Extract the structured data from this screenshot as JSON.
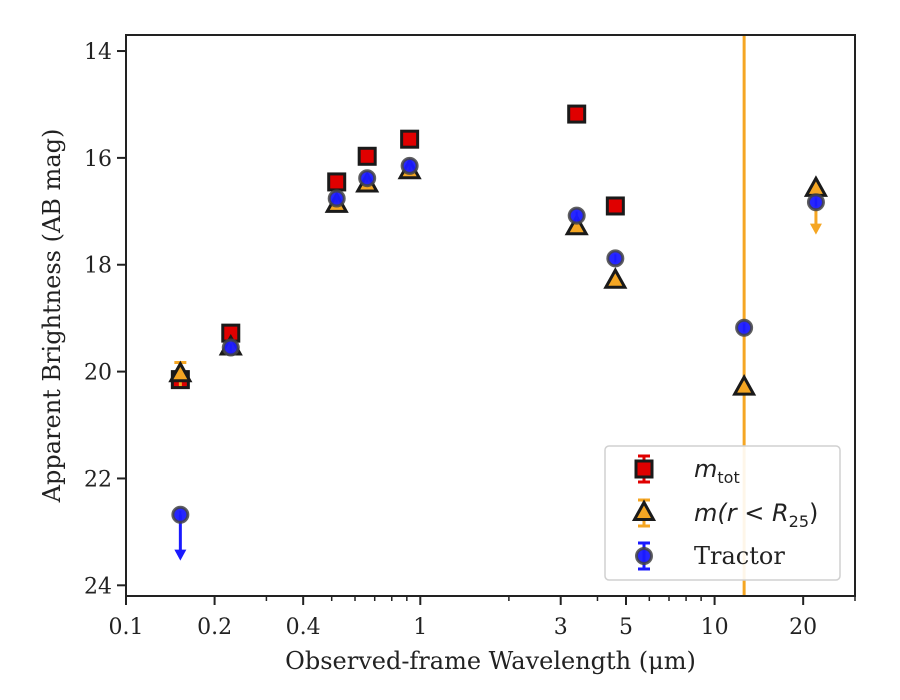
{
  "chart_data": {
    "type": "scatter",
    "xscale": "log",
    "xlim": [
      0.1,
      30
    ],
    "ylim": [
      24.2,
      13.7
    ],
    "y_inverted": true,
    "xlabel": "Observed-frame Wavelength (μm)",
    "ylabel": "Apparent Brightness (AB mag)",
    "xticks": [
      {
        "value": 0.1,
        "label": "0.1"
      },
      {
        "value": 0.2,
        "label": "0.2"
      },
      {
        "value": 0.4,
        "label": "0.4"
      },
      {
        "value": 1,
        "label": "1"
      },
      {
        "value": 3,
        "label": "3"
      },
      {
        "value": 5,
        "label": "5"
      },
      {
        "value": 10,
        "label": "10"
      },
      {
        "value": 20,
        "label": "20"
      }
    ],
    "yticks": [
      {
        "value": 14,
        "label": "14"
      },
      {
        "value": 16,
        "label": "16"
      },
      {
        "value": 18,
        "label": "18"
      },
      {
        "value": 20,
        "label": "20"
      },
      {
        "value": 22,
        "label": "22"
      },
      {
        "value": 24,
        "label": "24"
      }
    ],
    "grid": false,
    "legend_position": "lower-right",
    "vline": {
      "x": 12.6,
      "color": "#f5a623"
    },
    "series": [
      {
        "legend_main": "m",
        "legend_sub": "tot",
        "legend_rest": "",
        "marker": "square",
        "fill": "#e00000",
        "edge": "#1a1a1a",
        "err_color": "#e00000",
        "points": [
          {
            "x": 0.153,
            "y": 20.15
          },
          {
            "x": 0.227,
            "y": 19.28
          },
          {
            "x": 0.52,
            "y": 16.45
          },
          {
            "x": 0.66,
            "y": 15.97
          },
          {
            "x": 0.92,
            "y": 15.65
          },
          {
            "x": 3.4,
            "y": 15.18
          },
          {
            "x": 4.6,
            "y": 16.9
          }
        ]
      },
      {
        "legend_main": "m(r < R",
        "legend_sub": "25",
        "legend_rest": ")",
        "marker": "triangle",
        "fill": "#f5a623",
        "edge": "#1a1a1a",
        "err_color": "#f5a623",
        "points": [
          {
            "x": 0.153,
            "y": 20.05,
            "err": 0.22
          },
          {
            "x": 0.227,
            "y": 19.55
          },
          {
            "x": 0.52,
            "y": 16.88
          },
          {
            "x": 0.66,
            "y": 16.5
          },
          {
            "x": 0.92,
            "y": 16.25
          },
          {
            "x": 3.4,
            "y": 17.3
          },
          {
            "x": 4.6,
            "y": 18.3
          },
          {
            "x": 12.6,
            "y": 20.3
          },
          {
            "x": 22.1,
            "y": 16.58,
            "upper_limit": 17.4
          }
        ]
      },
      {
        "legend_main": "Tractor",
        "legend_sub": "",
        "legend_rest": "",
        "marker": "circle",
        "fill": "#1a1aff",
        "edge": "#444444",
        "err_color": "#1a1aff",
        "points": [
          {
            "x": 0.153,
            "y": 22.68,
            "upper_limit": 23.5
          },
          {
            "x": 0.227,
            "y": 19.55
          },
          {
            "x": 0.52,
            "y": 16.76
          },
          {
            "x": 0.66,
            "y": 16.38
          },
          {
            "x": 0.92,
            "y": 16.15
          },
          {
            "x": 3.4,
            "y": 17.08
          },
          {
            "x": 4.6,
            "y": 17.88
          },
          {
            "x": 12.6,
            "y": 19.18
          },
          {
            "x": 22.1,
            "y": 16.83
          }
        ]
      }
    ]
  }
}
